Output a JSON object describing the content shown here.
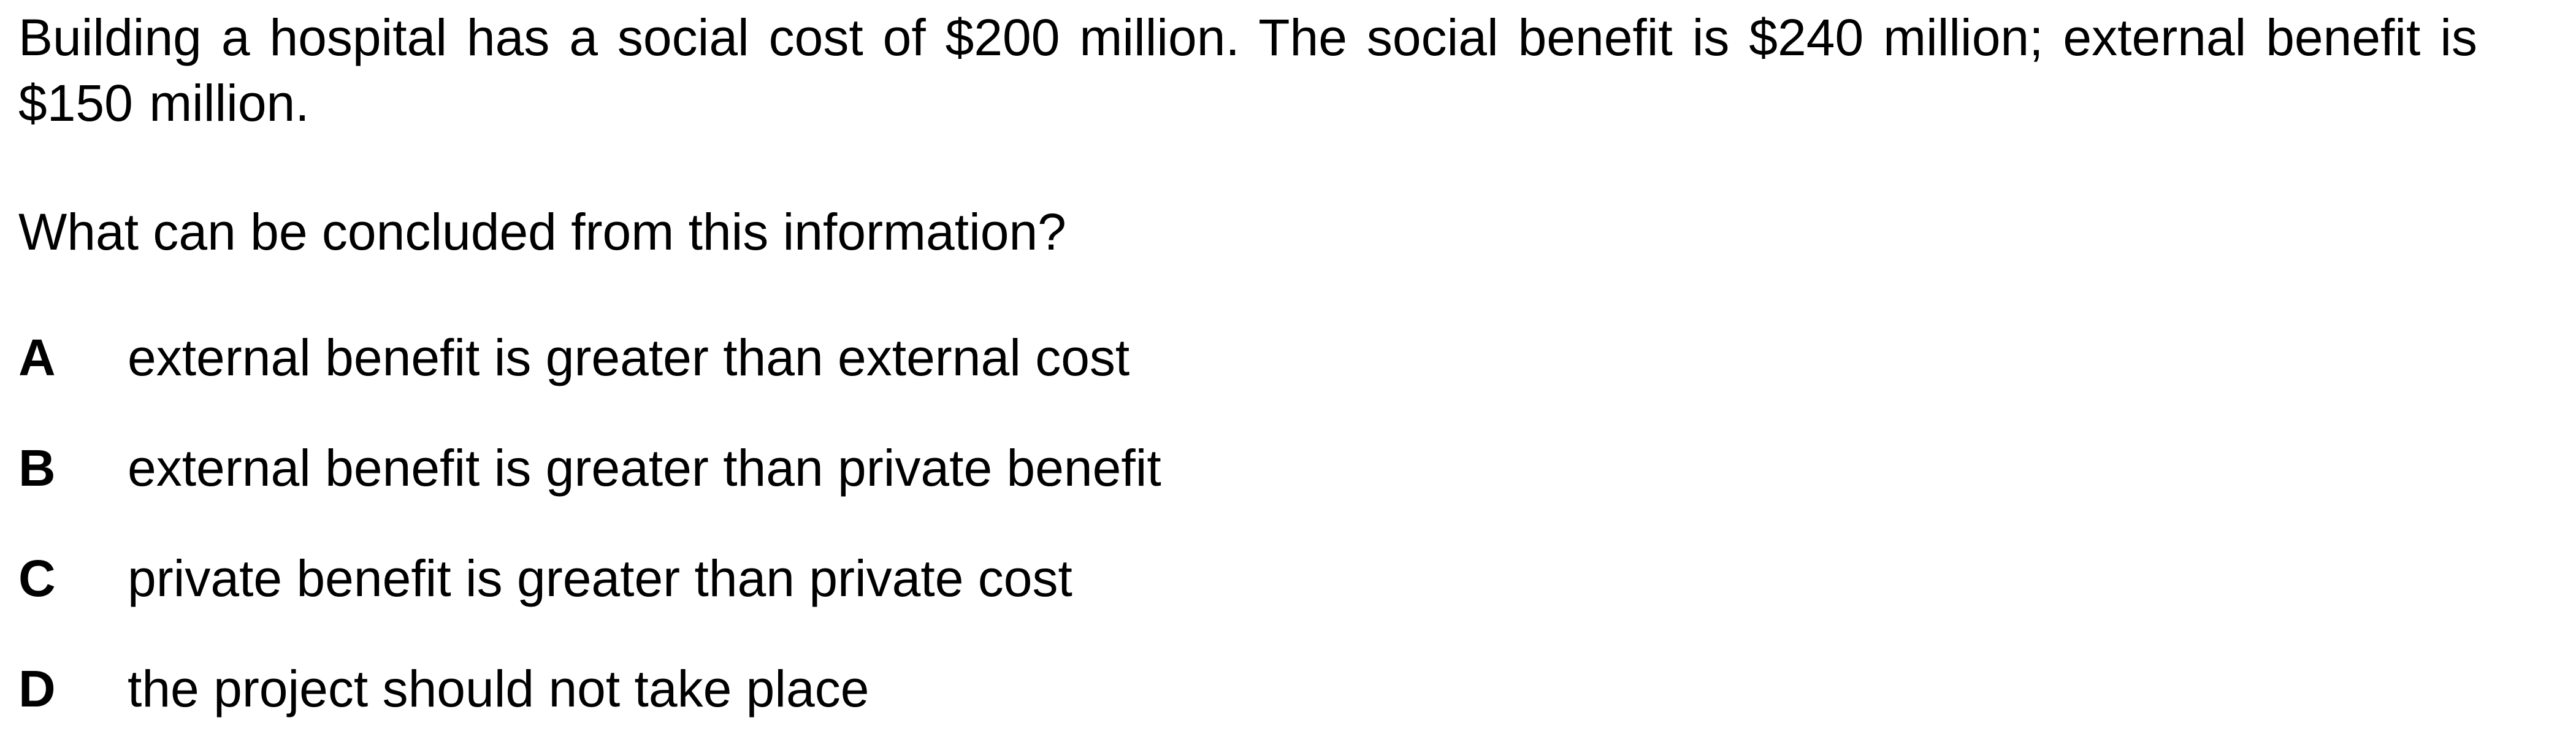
{
  "question": {
    "stem": "Building a hospital has a social cost of $200 million. The social benefit is $240 million; external benefit is $150 million.",
    "prompt": "What can be concluded from this information?"
  },
  "options": [
    {
      "letter": "A",
      "text": "external benefit is greater than external cost"
    },
    {
      "letter": "B",
      "text": "external benefit is greater than private benefit"
    },
    {
      "letter": "C",
      "text": "private benefit is greater than private cost"
    },
    {
      "letter": "D",
      "text": "the project should not take place"
    }
  ]
}
